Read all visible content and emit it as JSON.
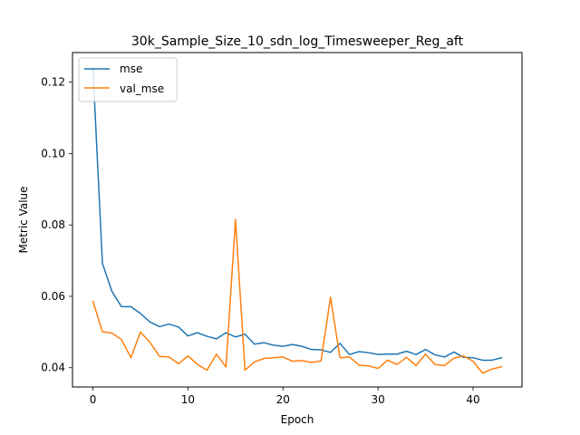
{
  "chart_data": {
    "type": "line",
    "title": "30k_Sample_Size_10_sdn_log_Timesweeper_Reg_aft",
    "xlabel": "Epoch",
    "ylabel": "Metric Value",
    "xlim": [
      -2.15,
      45.15
    ],
    "ylim": [
      0.0346,
      0.1283
    ],
    "xticks": [
      0,
      10,
      20,
      30,
      40
    ],
    "xtick_labels": [
      "0",
      "10",
      "20",
      "30",
      "40"
    ],
    "yticks": [
      0.04,
      0.06,
      0.08,
      0.1,
      0.12
    ],
    "ytick_labels": [
      "0.04",
      "0.06",
      "0.08",
      "0.10",
      "0.12"
    ],
    "grid": false,
    "legend_position": "top-left",
    "series": [
      {
        "name": "mse",
        "color": "#1f77b4",
        "values": [
          0.124,
          0.0692,
          0.0614,
          0.0571,
          0.0571,
          0.0552,
          0.0528,
          0.0515,
          0.0522,
          0.0514,
          0.0489,
          0.0498,
          0.0488,
          0.0481,
          0.0498,
          0.0486,
          0.0494,
          0.0466,
          0.047,
          0.0463,
          0.046,
          0.0465,
          0.046,
          0.0451,
          0.045,
          0.0443,
          0.0468,
          0.0437,
          0.0445,
          0.0442,
          0.0437,
          0.0438,
          0.0438,
          0.0446,
          0.0437,
          0.0451,
          0.0436,
          0.043,
          0.0444,
          0.0429,
          0.0428,
          0.0421,
          0.0421,
          0.0428
        ]
      },
      {
        "name": "val_mse",
        "color": "#ff7f0e",
        "values": [
          0.0586,
          0.0501,
          0.0497,
          0.0479,
          0.0428,
          0.05,
          0.0471,
          0.0432,
          0.043,
          0.0411,
          0.0433,
          0.0409,
          0.0393,
          0.0438,
          0.0402,
          0.0815,
          0.0393,
          0.0416,
          0.0426,
          0.0428,
          0.043,
          0.0418,
          0.042,
          0.0415,
          0.0419,
          0.0597,
          0.0428,
          0.043,
          0.0407,
          0.0405,
          0.0398,
          0.0421,
          0.0409,
          0.0429,
          0.0406,
          0.0438,
          0.0409,
          0.0406,
          0.0427,
          0.0433,
          0.0418,
          0.0385,
          0.0396,
          0.0403
        ]
      }
    ]
  }
}
